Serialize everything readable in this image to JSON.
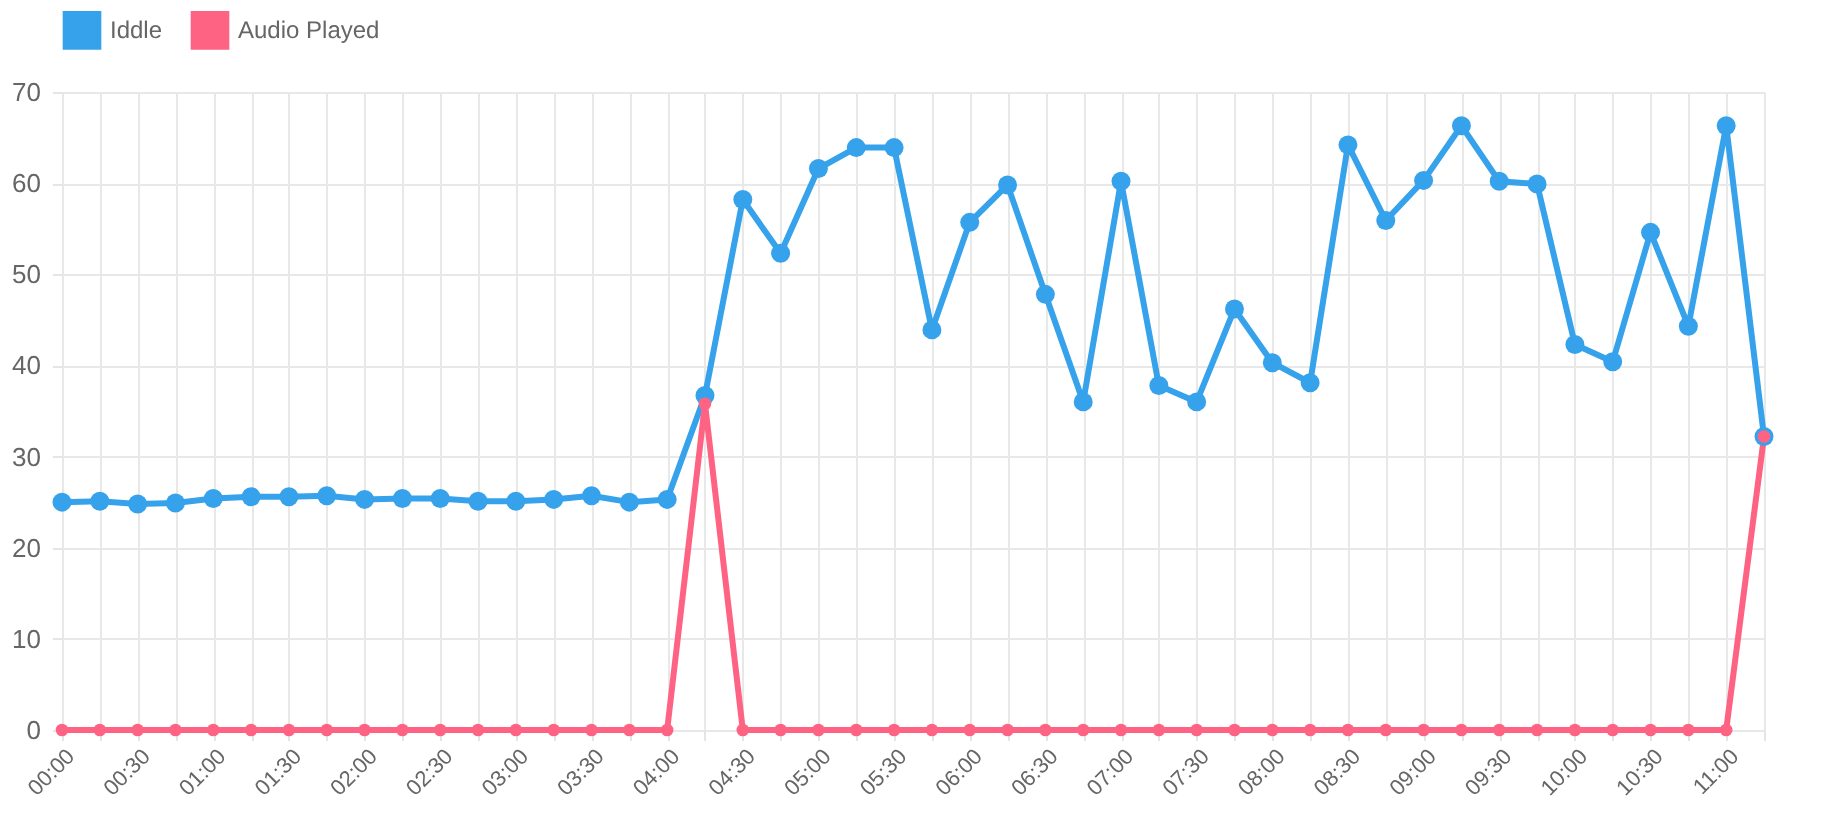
{
  "chart_data": {
    "type": "line",
    "categories": [
      "00:00",
      null,
      "00:30",
      null,
      "01:00",
      null,
      "01:30",
      null,
      "02:00",
      null,
      "02:30",
      null,
      "03:00",
      null,
      "03:30",
      null,
      "04:00",
      null,
      "04:30",
      null,
      "05:00",
      null,
      "05:30",
      null,
      "06:00",
      null,
      "06:30",
      null,
      "07:00",
      null,
      "07:30",
      null,
      "08:00",
      null,
      "08:30",
      null,
      "09:00",
      null,
      "09:30",
      null,
      "10:00",
      null,
      "10:30",
      null,
      "11:00",
      null
    ],
    "series": [
      {
        "name": "Iddle",
        "color": "#36a2eb",
        "values": [
          25.0,
          25.1,
          24.8,
          24.9,
          25.4,
          25.6,
          25.6,
          25.7,
          25.3,
          25.4,
          25.4,
          25.1,
          25.1,
          25.3,
          25.7,
          25.0,
          25.3,
          36.7,
          58.2,
          52.3,
          61.6,
          63.9,
          63.9,
          43.9,
          55.7,
          59.8,
          47.8,
          36.0,
          60.2,
          37.8,
          36.0,
          46.2,
          40.3,
          38.1,
          64.2,
          55.9,
          60.3,
          66.3,
          60.2,
          59.9,
          42.3,
          40.4,
          54.6,
          44.3,
          66.3,
          32.2
        ]
      },
      {
        "name": "Audio Played",
        "color": "#ff6384",
        "values": [
          0,
          0,
          0,
          0,
          0,
          0,
          0,
          0,
          0,
          0,
          0,
          0,
          0,
          0,
          0,
          0,
          0,
          35.8,
          0,
          0,
          0,
          0,
          0,
          0,
          0,
          0,
          0,
          0,
          0,
          0,
          0,
          0,
          0,
          0,
          0,
          0,
          0,
          0,
          0,
          0,
          0,
          0,
          0,
          0,
          0,
          32.2
        ]
      }
    ],
    "ylim": [
      0,
      70
    ],
    "yticks": [
      0,
      10,
      20,
      30,
      40,
      50,
      60,
      70
    ],
    "grid": true,
    "legend": "top",
    "marker": "circle",
    "line_style": "solid"
  }
}
